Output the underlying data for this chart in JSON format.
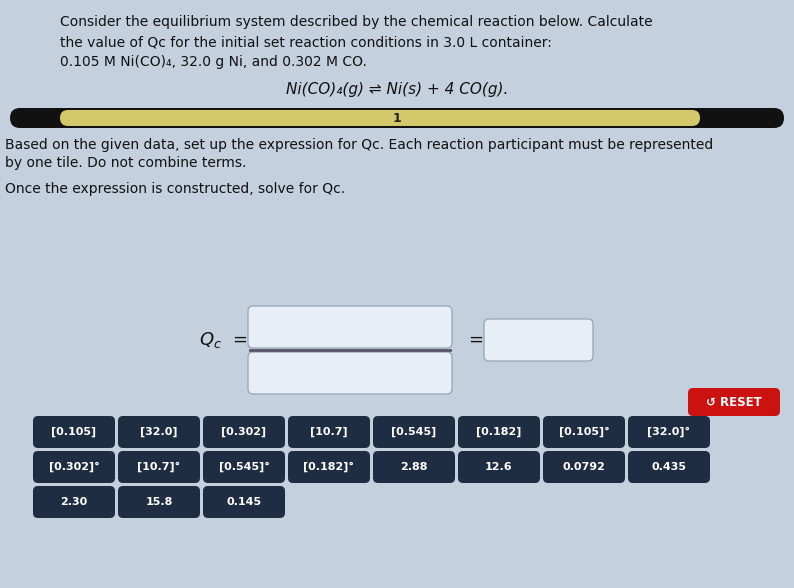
{
  "bg_color": "#c5d0df",
  "title_lines": [
    "Consider the equilibrium system described by the chemical reaction below. Calculate",
    "the value of Qc for the initial set reaction conditions in 3.0 L container:",
    "0.105 M Ni(CO)₄, 32.0 g Ni, and 0.302 M CO."
  ],
  "reaction": "Ni(CO)₄(g) ⇌ Ni(s) + 4 CO(g).",
  "progress_bar_color": "#d4c96a",
  "progress_bar_bg": "#111111",
  "progress_number": "1",
  "instruction1": "Based on the given data, set up the expression for Qc. Each reaction participant must be represented",
  "instruction2": "by one tile. Do not combine terms.",
  "instruction3": "Once the expression is constructed, solve for Qc.",
  "reset_label": "↺ RESET",
  "reset_color": "#cc1111",
  "tiles_row1": [
    "[0.105]",
    "[32.0]",
    "[0.302]",
    "[10.7]",
    "[0.545]",
    "[0.182]",
    "[0.105]°",
    "[32.0]°"
  ],
  "tiles_row2": [
    "[0.302]°",
    "[10.7]°",
    "[0.545]°",
    "[0.182]°",
    "2.88",
    "12.6",
    "0.0792",
    "0.435"
  ],
  "tiles_row3": [
    "2.30",
    "15.8",
    "0.145"
  ],
  "tile_bg": "#1e2d42",
  "tile_text_color": "#ffffff",
  "box_bg": "#e8eef5",
  "box_border": "#9aaabb",
  "frac_line_color": "#555566"
}
